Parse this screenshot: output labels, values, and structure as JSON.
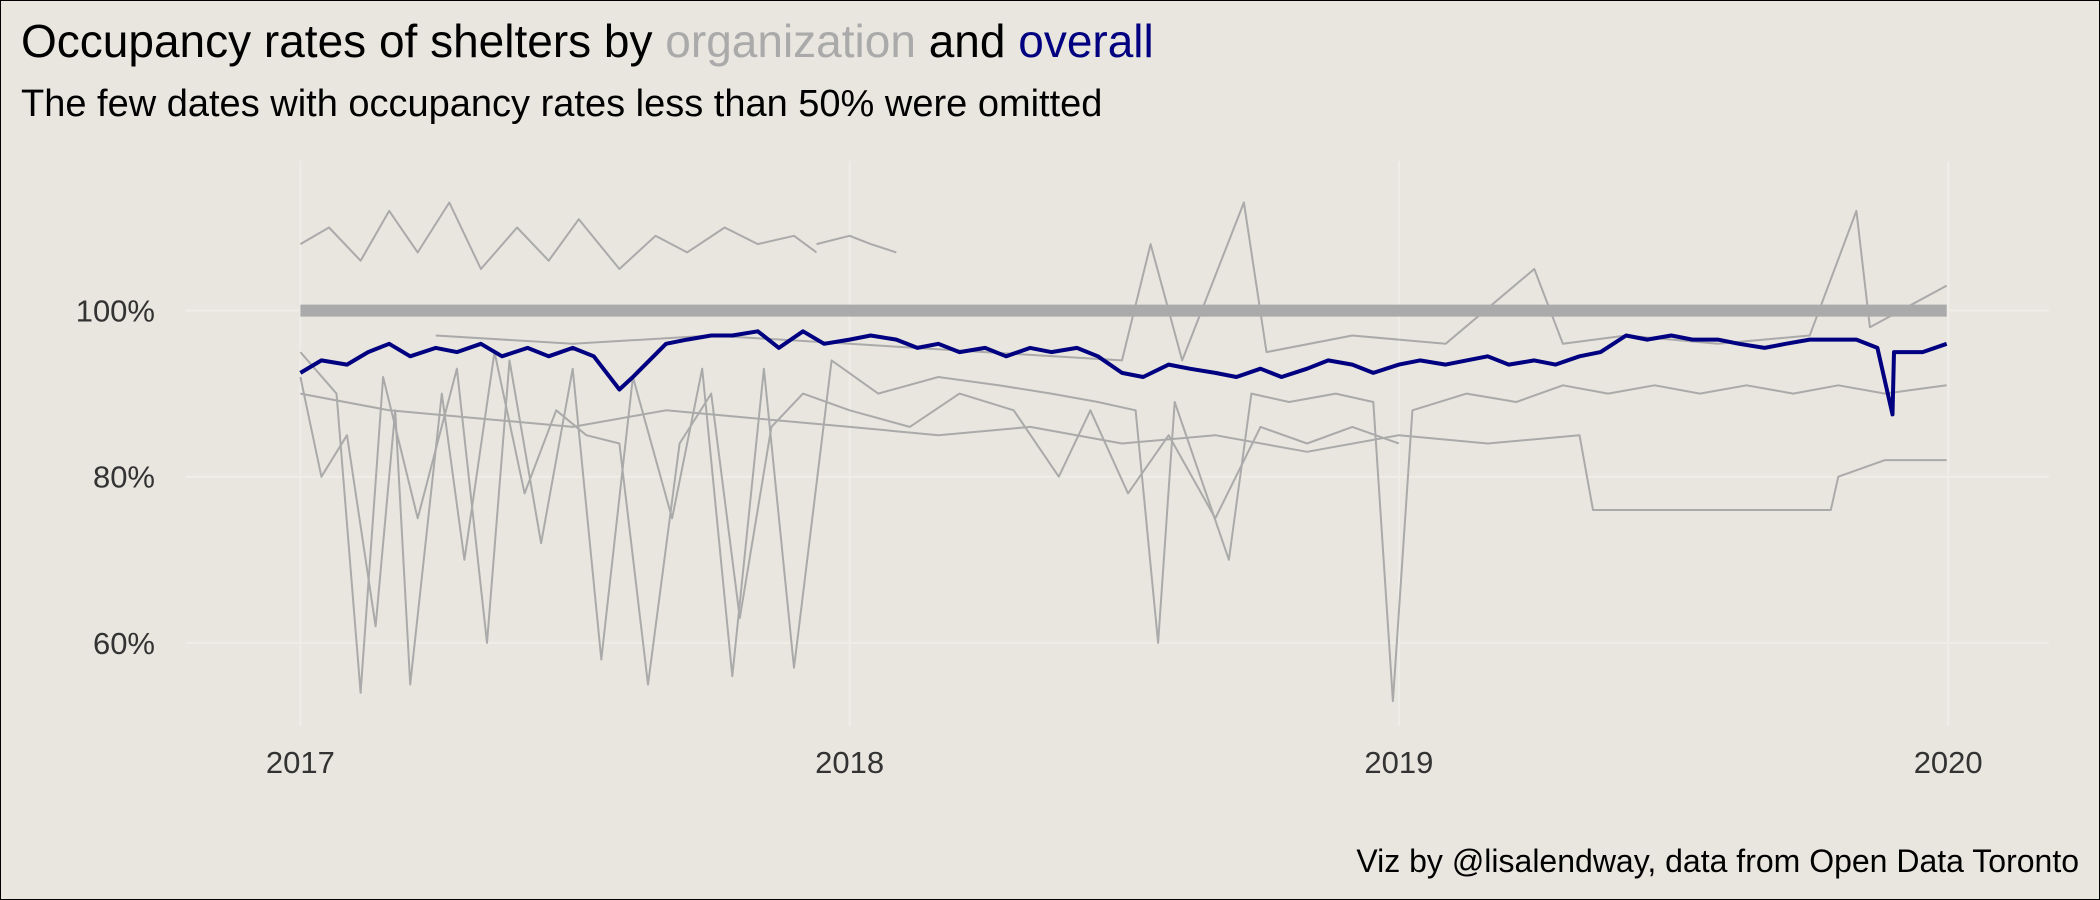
{
  "title": {
    "prefix": "Occupancy rates of shelters by ",
    "highlight_org": "organization",
    "middle": " and ",
    "highlight_overall": "overall"
  },
  "subtitle": "The few dates with occupancy rates less than 50% were omitted",
  "caption": "Viz by @lisalendway, data from Open Data Toronto",
  "colors": {
    "background": "#e8e6df",
    "organization": "#aaaaaa",
    "overall": "#000080",
    "grid": "#efede7"
  },
  "chart_data": {
    "type": "line",
    "title": "Occupancy rates of shelters by organization and overall",
    "subtitle": "The few dates with occupancy rates less than 50% were omitted",
    "xlim": [
      "2016-10-17",
      "2020-03-08"
    ],
    "ylim": [
      0.5,
      1.18
    ],
    "x_ticks": [
      {
        "date": "2017-01-01",
        "label": "2017"
      },
      {
        "date": "2018-01-01",
        "label": "2018"
      },
      {
        "date": "2019-01-01",
        "label": "2019"
      },
      {
        "date": "2020-01-01",
        "label": "2020"
      }
    ],
    "y_ticks": [
      {
        "value": 0.6,
        "label": "60%"
      },
      {
        "value": 0.8,
        "label": "80%"
      },
      {
        "value": 1.0,
        "label": "100%"
      }
    ],
    "grid": true,
    "legend": "none",
    "series": [
      {
        "role": "organization",
        "color": "#aaaaaa",
        "points": [
          [
            "2017-01-01",
            1.0
          ],
          [
            "2017-02-15",
            1.0
          ],
          [
            "2017-04-01",
            1.0
          ],
          [
            "2017-05-15",
            1.0
          ],
          [
            "2017-07-01",
            1.0
          ],
          [
            "2017-08-15",
            1.0
          ],
          [
            "2017-10-01",
            1.0
          ],
          [
            "2017-11-15",
            1.0
          ],
          [
            "2018-01-01",
            1.0
          ],
          [
            "2018-02-15",
            1.0
          ],
          [
            "2018-04-01",
            1.0
          ],
          [
            "2018-05-15",
            1.0
          ],
          [
            "2018-07-01",
            1.0
          ],
          [
            "2018-08-15",
            1.0
          ],
          [
            "2018-10-01",
            1.0
          ],
          [
            "2018-11-15",
            1.0
          ],
          [
            "2019-01-01",
            1.0
          ],
          [
            "2019-02-15",
            1.0
          ],
          [
            "2019-04-01",
            1.0
          ],
          [
            "2019-05-15",
            1.0
          ],
          [
            "2019-07-01",
            1.0
          ],
          [
            "2019-08-15",
            1.0
          ],
          [
            "2019-10-01",
            1.0
          ],
          [
            "2019-12-31",
            1.0
          ]
        ]
      },
      {
        "role": "organization",
        "color": "#aaaaaa",
        "points": [
          [
            "2017-01-01",
            1.08
          ],
          [
            "2017-01-20",
            1.1
          ],
          [
            "2017-02-10",
            1.06
          ],
          [
            "2017-03-01",
            1.12
          ],
          [
            "2017-03-20",
            1.07
          ],
          [
            "2017-04-10",
            1.13
          ],
          [
            "2017-05-01",
            1.05
          ],
          [
            "2017-05-25",
            1.1
          ],
          [
            "2017-06-15",
            1.06
          ],
          [
            "2017-07-05",
            1.11
          ],
          [
            "2017-08-01",
            1.05
          ],
          [
            "2017-08-25",
            1.09
          ],
          [
            "2017-09-15",
            1.07
          ],
          [
            "2017-10-10",
            1.1
          ],
          [
            "2017-11-01",
            1.08
          ],
          [
            "2017-11-25",
            1.09
          ],
          [
            "2017-12-10",
            1.07
          ]
        ]
      },
      {
        "role": "organization",
        "color": "#aaaaaa",
        "points": [
          [
            "2017-12-10",
            1.08
          ],
          [
            "2018-01-01",
            1.09
          ],
          [
            "2018-01-15",
            1.08
          ],
          [
            "2018-02-01",
            1.07
          ]
        ]
      },
      {
        "role": "organization",
        "color": "#aaaaaa",
        "points": [
          [
            "2017-01-01",
            0.92
          ],
          [
            "2017-01-15",
            0.8
          ],
          [
            "2017-02-01",
            0.85
          ],
          [
            "2017-02-20",
            0.62
          ],
          [
            "2017-03-05",
            0.88
          ],
          [
            "2017-03-15",
            0.55
          ],
          [
            "2017-04-05",
            0.9
          ],
          [
            "2017-04-20",
            0.7
          ],
          [
            "2017-05-10",
            0.95
          ],
          [
            "2017-05-30",
            0.78
          ],
          [
            "2017-06-20",
            0.88
          ],
          [
            "2017-07-10",
            0.85
          ],
          [
            "2017-08-01",
            0.84
          ],
          [
            "2017-08-20",
            0.55
          ],
          [
            "2017-09-10",
            0.84
          ],
          [
            "2017-10-01",
            0.9
          ],
          [
            "2017-10-20",
            0.63
          ],
          [
            "2017-11-10",
            0.86
          ],
          [
            "2017-12-01",
            0.9
          ],
          [
            "2018-01-01",
            0.88
          ],
          [
            "2018-02-10",
            0.86
          ],
          [
            "2018-03-15",
            0.9
          ],
          [
            "2018-04-20",
            0.88
          ],
          [
            "2018-05-20",
            0.8
          ],
          [
            "2018-06-10",
            0.88
          ],
          [
            "2018-07-05",
            0.78
          ],
          [
            "2018-08-01",
            0.85
          ],
          [
            "2018-09-01",
            0.75
          ],
          [
            "2018-10-01",
            0.86
          ],
          [
            "2018-11-01",
            0.84
          ],
          [
            "2018-12-01",
            0.86
          ],
          [
            "2019-01-01",
            0.84
          ]
        ]
      },
      {
        "role": "organization",
        "color": "#aaaaaa",
        "points": [
          [
            "2017-01-01",
            0.95
          ],
          [
            "2017-01-25",
            0.9
          ],
          [
            "2017-02-10",
            0.54
          ],
          [
            "2017-02-25",
            0.92
          ],
          [
            "2017-03-20",
            0.75
          ],
          [
            "2017-04-15",
            0.93
          ],
          [
            "2017-05-05",
            0.6
          ],
          [
            "2017-05-20",
            0.94
          ],
          [
            "2017-06-10",
            0.72
          ],
          [
            "2017-07-01",
            0.93
          ],
          [
            "2017-07-20",
            0.58
          ],
          [
            "2017-08-10",
            0.92
          ],
          [
            "2017-09-05",
            0.75
          ],
          [
            "2017-09-25",
            0.93
          ],
          [
            "2017-10-15",
            0.56
          ],
          [
            "2017-11-05",
            0.93
          ],
          [
            "2017-11-25",
            0.57
          ],
          [
            "2017-12-20",
            0.94
          ],
          [
            "2018-01-20",
            0.9
          ],
          [
            "2018-03-01",
            0.92
          ],
          [
            "2018-04-10",
            0.91
          ],
          [
            "2018-05-15",
            0.9
          ],
          [
            "2018-06-15",
            0.89
          ],
          [
            "2018-07-10",
            0.88
          ],
          [
            "2018-07-25",
            0.6
          ],
          [
            "2018-08-05",
            0.89
          ],
          [
            "2018-09-10",
            0.7
          ],
          [
            "2018-09-25",
            0.9
          ],
          [
            "2018-10-20",
            0.89
          ],
          [
            "2018-11-20",
            0.9
          ],
          [
            "2018-12-15",
            0.89
          ],
          [
            "2018-12-28",
            0.53
          ],
          [
            "2019-01-10",
            0.88
          ],
          [
            "2019-02-15",
            0.9
          ],
          [
            "2019-03-20",
            0.89
          ],
          [
            "2019-04-20",
            0.91
          ],
          [
            "2019-05-20",
            0.9
          ],
          [
            "2019-06-20",
            0.91
          ],
          [
            "2019-07-20",
            0.9
          ],
          [
            "2019-08-20",
            0.91
          ],
          [
            "2019-09-20",
            0.9
          ],
          [
            "2019-10-20",
            0.91
          ],
          [
            "2019-11-20",
            0.9
          ],
          [
            "2019-12-31",
            0.91
          ]
        ]
      },
      {
        "role": "organization",
        "color": "#aaaaaa",
        "points": [
          [
            "2017-01-01",
            0.9
          ],
          [
            "2017-03-01",
            0.88
          ],
          [
            "2017-05-01",
            0.87
          ],
          [
            "2017-07-01",
            0.86
          ],
          [
            "2017-09-01",
            0.88
          ],
          [
            "2017-11-01",
            0.87
          ],
          [
            "2018-01-01",
            0.86
          ],
          [
            "2018-03-01",
            0.85
          ],
          [
            "2018-05-01",
            0.86
          ],
          [
            "2018-07-01",
            0.84
          ],
          [
            "2018-09-01",
            0.85
          ],
          [
            "2018-11-01",
            0.83
          ],
          [
            "2019-01-01",
            0.85
          ],
          [
            "2019-03-01",
            0.84
          ],
          [
            "2019-05-01",
            0.85
          ],
          [
            "2019-05-10",
            0.76
          ],
          [
            "2019-07-01",
            0.76
          ],
          [
            "2019-09-01",
            0.76
          ],
          [
            "2019-10-15",
            0.76
          ],
          [
            "2019-10-20",
            0.8
          ],
          [
            "2019-11-20",
            0.82
          ],
          [
            "2019-12-31",
            0.82
          ]
        ]
      },
      {
        "role": "organization",
        "color": "#aaaaaa",
        "points": [
          [
            "2017-04-01",
            0.97
          ],
          [
            "2017-07-01",
            0.96
          ],
          [
            "2017-10-01",
            0.97
          ],
          [
            "2018-01-01",
            0.96
          ],
          [
            "2018-04-01",
            0.95
          ],
          [
            "2018-07-01",
            0.94
          ],
          [
            "2018-07-20",
            1.08
          ],
          [
            "2018-08-10",
            0.94
          ],
          [
            "2018-09-20",
            1.13
          ],
          [
            "2018-10-05",
            0.95
          ],
          [
            "2018-12-01",
            0.97
          ],
          [
            "2019-02-01",
            0.96
          ],
          [
            "2019-04-01",
            1.05
          ],
          [
            "2019-04-20",
            0.96
          ],
          [
            "2019-06-01",
            0.97
          ],
          [
            "2019-08-01",
            0.96
          ],
          [
            "2019-10-01",
            0.97
          ],
          [
            "2019-11-01",
            1.12
          ],
          [
            "2019-11-10",
            0.98
          ],
          [
            "2019-12-31",
            1.03
          ]
        ]
      },
      {
        "role": "overall",
        "color": "#000080",
        "points": [
          [
            "2017-01-01",
            0.925
          ],
          [
            "2017-01-15",
            0.94
          ],
          [
            "2017-02-01",
            0.935
          ],
          [
            "2017-02-15",
            0.95
          ],
          [
            "2017-03-01",
            0.96
          ],
          [
            "2017-03-15",
            0.945
          ],
          [
            "2017-04-01",
            0.955
          ],
          [
            "2017-04-15",
            0.95
          ],
          [
            "2017-05-01",
            0.96
          ],
          [
            "2017-05-15",
            0.945
          ],
          [
            "2017-06-01",
            0.955
          ],
          [
            "2017-06-15",
            0.945
          ],
          [
            "2017-07-01",
            0.955
          ],
          [
            "2017-07-15",
            0.945
          ],
          [
            "2017-08-01",
            0.905
          ],
          [
            "2017-08-10",
            0.92
          ],
          [
            "2017-09-01",
            0.96
          ],
          [
            "2017-09-15",
            0.965
          ],
          [
            "2017-10-01",
            0.97
          ],
          [
            "2017-10-15",
            0.97
          ],
          [
            "2017-11-01",
            0.975
          ],
          [
            "2017-11-15",
            0.955
          ],
          [
            "2017-12-01",
            0.975
          ],
          [
            "2017-12-15",
            0.96
          ],
          [
            "2018-01-01",
            0.965
          ],
          [
            "2018-01-15",
            0.97
          ],
          [
            "2018-02-01",
            0.965
          ],
          [
            "2018-02-15",
            0.955
          ],
          [
            "2018-03-01",
            0.96
          ],
          [
            "2018-03-15",
            0.95
          ],
          [
            "2018-04-01",
            0.955
          ],
          [
            "2018-04-15",
            0.945
          ],
          [
            "2018-05-01",
            0.955
          ],
          [
            "2018-05-15",
            0.95
          ],
          [
            "2018-06-01",
            0.955
          ],
          [
            "2018-06-15",
            0.945
          ],
          [
            "2018-07-01",
            0.925
          ],
          [
            "2018-07-15",
            0.92
          ],
          [
            "2018-08-01",
            0.935
          ],
          [
            "2018-08-15",
            0.93
          ],
          [
            "2018-09-01",
            0.925
          ],
          [
            "2018-09-15",
            0.92
          ],
          [
            "2018-10-01",
            0.93
          ],
          [
            "2018-10-15",
            0.92
          ],
          [
            "2018-11-01",
            0.93
          ],
          [
            "2018-11-15",
            0.94
          ],
          [
            "2018-12-01",
            0.935
          ],
          [
            "2018-12-15",
            0.925
          ],
          [
            "2019-01-01",
            0.935
          ],
          [
            "2019-01-15",
            0.94
          ],
          [
            "2019-02-01",
            0.935
          ],
          [
            "2019-02-15",
            0.94
          ],
          [
            "2019-03-01",
            0.945
          ],
          [
            "2019-03-15",
            0.935
          ],
          [
            "2019-04-01",
            0.94
          ],
          [
            "2019-04-15",
            0.935
          ],
          [
            "2019-05-01",
            0.945
          ],
          [
            "2019-05-15",
            0.95
          ],
          [
            "2019-06-01",
            0.97
          ],
          [
            "2019-06-15",
            0.965
          ],
          [
            "2019-07-01",
            0.97
          ],
          [
            "2019-07-15",
            0.965
          ],
          [
            "2019-08-01",
            0.965
          ],
          [
            "2019-08-15",
            0.96
          ],
          [
            "2019-09-01",
            0.955
          ],
          [
            "2019-09-15",
            0.96
          ],
          [
            "2019-10-01",
            0.965
          ],
          [
            "2019-10-15",
            0.965
          ],
          [
            "2019-11-01",
            0.965
          ],
          [
            "2019-11-15",
            0.955
          ],
          [
            "2019-11-25",
            0.875
          ],
          [
            "2019-11-26",
            0.95
          ],
          [
            "2019-12-15",
            0.95
          ],
          [
            "2019-12-31",
            0.96
          ]
        ]
      }
    ]
  }
}
